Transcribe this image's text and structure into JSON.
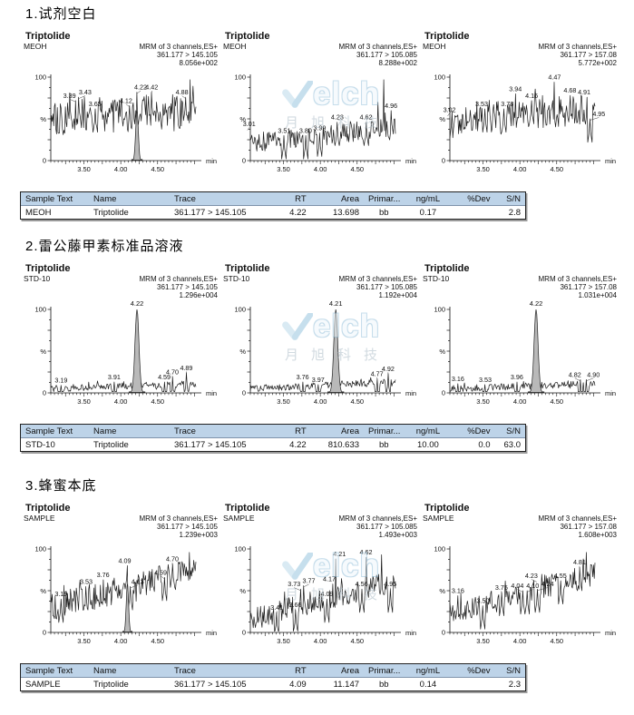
{
  "colors": {
    "table_header_bg": "#bdd3e8",
    "table_border": "#222222",
    "trace": "#1c1c1c",
    "peak_fill": "#b9b9b9",
    "peak_outline": "#222222",
    "watermark_blue": "#8fc0dc",
    "watermark_gray": "#a5b6c2"
  },
  "watermark": {
    "logo_tail": "elch",
    "check_icon": "check-swoosh-icon",
    "cn": "月旭科技"
  },
  "axis": {
    "x_min": 3.05,
    "x_max": 5.02,
    "x_tick_values": [
      3.5,
      4.0,
      4.5
    ],
    "x_tick_labels": [
      "3.50",
      "4.00",
      "4.50"
    ],
    "minor_step": 0.05,
    "x_unit": "min",
    "y_top_label": "100",
    "y_mid_label": "%",
    "y_bottom_label": "0",
    "ylim": [
      0,
      100
    ]
  },
  "table_headers": [
    "Sample Text",
    "Name",
    "Trace",
    "RT",
    "Area",
    "Primar...",
    "ng/mL",
    "%Dev",
    "S/N"
  ],
  "table_col_widths": [
    13.5,
    16,
    19.5,
    8.5,
    10.5,
    8,
    9.5,
    8.5,
    6
  ],
  "table_col_aligns": [
    "left",
    "left",
    "left",
    "right",
    "right",
    "center",
    "center",
    "right",
    "right"
  ],
  "sections": [
    {
      "heading": "1.试剂空白",
      "charts": [
        0,
        1,
        2
      ],
      "table_row": [
        "MEOH",
        "Triptolide",
        "361.177 > 145.105",
        "4.22",
        "13.698",
        "bb",
        "0.17",
        "",
        "2.8"
      ]
    },
    {
      "heading": "2.雷公藤甲素标准品溶液",
      "charts": [
        3,
        4,
        5
      ],
      "table_row": [
        "STD-10",
        "Triptolide",
        "361.177 > 145.105",
        "4.22",
        "810.633",
        "bb",
        "10.00",
        "0.0",
        "63.0"
      ]
    },
    {
      "heading": "3.蜂蜜本底",
      "charts": [
        6,
        7,
        8
      ],
      "table_row": [
        "SAMPLE",
        "Triptolide",
        "361.177 > 145.105",
        "4.09",
        "11.147",
        "bb",
        "0.14",
        "",
        "2.3"
      ]
    }
  ],
  "chart_data": [
    {
      "type": "line",
      "title": "Triptolide",
      "sample": "MEOH",
      "channel": "MRM of 3 channels,ES+",
      "transition": "361.177 > 145.105",
      "intensity": "8.056e+002",
      "xlabel": "min",
      "ylabel": "%",
      "ylim": [
        0,
        100
      ],
      "x_range": [
        3.05,
        5.02
      ],
      "profile": "noise",
      "trend": [
        52,
        60
      ],
      "amp": 27,
      "seed": 101,
      "peaks": [
        {
          "rt": 3.39,
          "label": "3.39",
          "pct": 72,
          "dx": -7
        },
        {
          "rt": 3.43,
          "label": "3.43",
          "pct": 76,
          "dx": 7
        },
        {
          "rt": 3.65,
          "label": "3.65",
          "pct": 62
        },
        {
          "rt": 4.12,
          "label": "4.12",
          "pct": 66,
          "dx": -4,
          "ld": 1
        },
        {
          "rt": 4.22,
          "label": "4.22",
          "pct": 82,
          "dx": 4,
          "ld": 1
        },
        {
          "rt": 4.42,
          "label": "4.42",
          "pct": 82,
          "ld": 1
        },
        {
          "rt": 4.88,
          "label": "4.88",
          "pct": 76,
          "dx": -4,
          "ld": 1
        }
      ],
      "extra_spikes": [
        {
          "rt": 4.94,
          "pct": 97
        }
      ],
      "fill_peak": {
        "rt": 4.22,
        "pct": 60,
        "sigma": 0.018
      }
    },
    {
      "type": "line",
      "title": "Triptolide",
      "sample": "MEOH",
      "channel": "MRM of 3 channels,ES+",
      "transition": "361.177 > 105.085",
      "intensity": "8.288e+002",
      "xlabel": "min",
      "ylabel": "%",
      "ylim": [
        0,
        100
      ],
      "x_range": [
        3.05,
        5.02
      ],
      "profile": "noise",
      "trend": [
        20,
        40
      ],
      "amp": 15,
      "seed": 102,
      "peaks": [
        {
          "rt": 3.01,
          "label": "3.01",
          "pct": 38,
          "dx": 2,
          "ld": 1
        },
        {
          "rt": 3.51,
          "label": "3.51",
          "pct": 30
        },
        {
          "rt": 3.8,
          "label": "3.80",
          "pct": 30
        },
        {
          "rt": 3.99,
          "label": "3.99",
          "pct": 33
        },
        {
          "rt": 4.23,
          "label": "4.23",
          "pct": 46
        },
        {
          "rt": 4.62,
          "label": "4.62",
          "pct": 46
        },
        {
          "rt": 4.96,
          "label": "4.96",
          "pct": 60
        }
      ],
      "extra_spikes": [
        {
          "rt": 4.86,
          "pct": 97
        },
        {
          "rt": 4.78,
          "pct": 70
        }
      ],
      "fill_peak": null
    },
    {
      "type": "line",
      "title": "Triptolide",
      "sample": "MEOH",
      "channel": "MRM of 3 channels,ES+",
      "transition": "361.177 > 157.08",
      "intensity": "5.772e+002",
      "xlabel": "min",
      "ylabel": "%",
      "ylim": [
        0,
        100
      ],
      "x_range": [
        3.05,
        5.02
      ],
      "profile": "noise",
      "trend": [
        48,
        62
      ],
      "amp": 23,
      "seed": 103,
      "peaks": [
        {
          "rt": 3.02,
          "label": "3.02",
          "pct": 55,
          "dx": 2,
          "ld": 1
        },
        {
          "rt": 3.53,
          "label": "3.53",
          "pct": 62,
          "dx": -4
        },
        {
          "rt": 3.78,
          "label": "3.78",
          "pct": 62,
          "dx": 4
        },
        {
          "rt": 3.94,
          "label": "3.94",
          "pct": 80
        },
        {
          "rt": 4.16,
          "label": "4.16",
          "pct": 72
        },
        {
          "rt": 4.47,
          "label": "4.47",
          "pct": 94
        },
        {
          "rt": 4.68,
          "label": "4.68",
          "pct": 78
        },
        {
          "rt": 4.91,
          "label": "4.91",
          "pct": 76,
          "dx": -3
        },
        {
          "rt": 4.95,
          "label": "4.95",
          "pct": 50,
          "dx": 10,
          "ld": 1
        }
      ],
      "extra_spikes": [],
      "fill_peak": null
    },
    {
      "type": "line",
      "title": "Triptolide",
      "sample": "STD-10",
      "channel": "MRM of 3 channels,ES+",
      "transition": "361.177 > 145.105",
      "intensity": "1.296e+004",
      "xlabel": "min",
      "ylabel": "%",
      "ylim": [
        0,
        100
      ],
      "x_range": [
        3.05,
        5.02
      ],
      "profile": "std",
      "trend": [
        5,
        11
      ],
      "amp": 5,
      "seed": 104,
      "peaks": [
        {
          "rt": 3.19,
          "label": "3.19",
          "pct": 9
        },
        {
          "rt": 3.91,
          "label": "3.91",
          "pct": 13
        },
        {
          "rt": 4.59,
          "label": "4.59",
          "pct": 13
        },
        {
          "rt": 4.7,
          "label": "4.70",
          "pct": 19,
          "ld": 1
        },
        {
          "rt": 4.89,
          "label": "4.89",
          "pct": 24,
          "ld": 1
        }
      ],
      "extra_spikes": [],
      "main_peak": {
        "rt": 4.22,
        "label": "4.22",
        "pct": 100,
        "sigma": 0.027
      }
    },
    {
      "type": "line",
      "title": "Triptolide",
      "sample": "STD-10",
      "channel": "MRM of 3 channels,ES+",
      "transition": "361.177 > 105.085",
      "intensity": "1.192e+004",
      "xlabel": "min",
      "ylabel": "%",
      "ylim": [
        0,
        100
      ],
      "x_range": [
        3.05,
        5.02
      ],
      "profile": "std",
      "trend": [
        5,
        13
      ],
      "amp": 5,
      "seed": 105,
      "peaks": [
        {
          "rt": 3.76,
          "label": "3.76",
          "pct": 13
        },
        {
          "rt": 3.97,
          "label": "3.97",
          "pct": 10
        },
        {
          "rt": 4.77,
          "label": "4.77",
          "pct": 17,
          "ld": 1
        },
        {
          "rt": 4.92,
          "label": "4.92",
          "pct": 23,
          "ld": 1
        }
      ],
      "extra_spikes": [],
      "main_peak": {
        "rt": 4.21,
        "label": "4.21",
        "pct": 100,
        "sigma": 0.027
      }
    },
    {
      "type": "line",
      "title": "Triptolide",
      "sample": "STD-10",
      "channel": "MRM of 3 channels,ES+",
      "transition": "361.177 > 157.08",
      "intensity": "1.031e+004",
      "xlabel": "min",
      "ylabel": "%",
      "ylim": [
        0,
        100
      ],
      "x_range": [
        3.05,
        5.02
      ],
      "profile": "std",
      "trend": [
        5,
        11
      ],
      "amp": 5,
      "seed": 106,
      "peaks": [
        {
          "rt": 3.16,
          "label": "3.16",
          "pct": 11
        },
        {
          "rt": 3.53,
          "label": "3.53",
          "pct": 10
        },
        {
          "rt": 3.96,
          "label": "3.96",
          "pct": 13
        },
        {
          "rt": 4.82,
          "label": "4.82",
          "pct": 16,
          "dx": -6
        },
        {
          "rt": 4.9,
          "label": "4.90",
          "pct": 16,
          "dx": 8
        }
      ],
      "extra_spikes": [],
      "main_peak": {
        "rt": 4.22,
        "label": "4.22",
        "pct": 100,
        "sigma": 0.027
      }
    },
    {
      "type": "line",
      "title": "Triptolide",
      "sample": "SAMPLE",
      "channel": "MRM of 3 channels,ES+",
      "transition": "361.177 > 145.105",
      "intensity": "1.239e+003",
      "xlabel": "min",
      "ylabel": "%",
      "ylim": [
        0,
        100
      ],
      "x_range": [
        3.05,
        5.02
      ],
      "profile": "noise",
      "trend": [
        30,
        75
      ],
      "amp": 20,
      "seed": 107,
      "peaks": [
        {
          "rt": 3.19,
          "label": "3.19",
          "pct": 40
        },
        {
          "rt": 3.53,
          "label": "3.53",
          "pct": 55
        },
        {
          "rt": 3.76,
          "label": "3.76",
          "pct": 63
        },
        {
          "rt": 4.09,
          "label": "4.09",
          "pct": 80,
          "dx": -3
        },
        {
          "rt": 4.13,
          "label": "4.13",
          "pct": 55,
          "dx": 8,
          "ld": 1
        },
        {
          "rt": 4.59,
          "label": "4.59",
          "pct": 66,
          "dx": -4,
          "ld": 1
        },
        {
          "rt": 4.7,
          "label": "4.70",
          "pct": 82,
          "ld": 1
        }
      ],
      "extra_spikes": [
        {
          "rt": 4.93,
          "pct": 96
        }
      ],
      "fill_peak": {
        "rt": 4.09,
        "pct": 58,
        "sigma": 0.016
      }
    },
    {
      "type": "line",
      "title": "Triptolide",
      "sample": "SAMPLE",
      "channel": "MRM of 3 channels,ES+",
      "transition": "361.177 > 105.085",
      "intensity": "1.493e+003",
      "xlabel": "min",
      "ylabel": "%",
      "ylim": [
        0,
        100
      ],
      "x_range": [
        3.05,
        5.02
      ],
      "profile": "noise",
      "trend": [
        16,
        62
      ],
      "amp": 17,
      "seed": 108,
      "peaks": [
        {
          "rt": 3.41,
          "label": "3.41",
          "pct": 24,
          "ld": 1
        },
        {
          "rt": 3.66,
          "label": "3.66",
          "pct": 27,
          "ld": 1
        },
        {
          "rt": 3.73,
          "label": "3.73",
          "pct": 52,
          "dx": -7
        },
        {
          "rt": 3.77,
          "label": "3.77",
          "pct": 56,
          "dx": 6
        },
        {
          "rt": 4.09,
          "label": "4.09",
          "pct": 40
        },
        {
          "rt": 4.17,
          "label": "4.17",
          "pct": 58,
          "dx": -4
        },
        {
          "rt": 4.21,
          "label": "4.21",
          "pct": 88,
          "dx": 4
        },
        {
          "rt": 4.56,
          "label": "4.56",
          "pct": 52
        },
        {
          "rt": 4.62,
          "label": "4.62",
          "pct": 90
        },
        {
          "rt": 4.95,
          "label": "4.95",
          "pct": 52,
          "ld": 1
        }
      ],
      "extra_spikes": [
        {
          "rt": 4.83,
          "pct": 93
        }
      ],
      "fill_peak": null
    },
    {
      "type": "line",
      "title": "Triptolide",
      "sample": "SAMPLE",
      "channel": "MRM of 3 channels,ES+",
      "transition": "361.177 > 157.08",
      "intensity": "1.608e+003",
      "xlabel": "min",
      "ylabel": "%",
      "ylim": [
        0,
        100
      ],
      "x_range": [
        3.05,
        5.02
      ],
      "profile": "noise",
      "trend": [
        24,
        70
      ],
      "amp": 17,
      "seed": 109,
      "peaks": [
        {
          "rt": 3.16,
          "label": "3.16",
          "pct": 44
        },
        {
          "rt": 3.5,
          "label": "3.50",
          "pct": 32
        },
        {
          "rt": 3.75,
          "label": "3.75",
          "pct": 48,
          "ld": 1
        },
        {
          "rt": 4.04,
          "label": "4.04",
          "pct": 50,
          "dx": -6
        },
        {
          "rt": 4.1,
          "label": "4.10",
          "pct": 50,
          "dx": 6
        },
        {
          "rt": 4.23,
          "label": "4.23",
          "pct": 62,
          "dx": -6
        },
        {
          "rt": 4.24,
          "label": "4.24",
          "pct": 52,
          "dx": 11,
          "ld": 1
        },
        {
          "rt": 4.55,
          "label": "4.55",
          "pct": 62
        },
        {
          "rt": 4.81,
          "label": "4.81",
          "pct": 78,
          "ld": 1
        }
      ],
      "extra_spikes": [
        {
          "rt": 4.9,
          "pct": 96
        },
        {
          "rt": 4.86,
          "pct": 88
        }
      ],
      "fill_peak": null
    }
  ]
}
